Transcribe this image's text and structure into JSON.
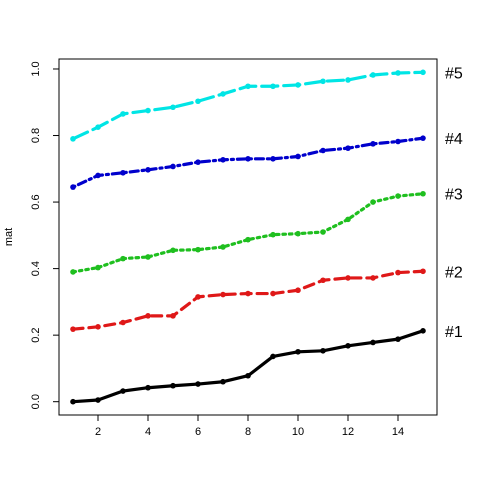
{
  "chart_data": {
    "type": "line",
    "xlabel": "",
    "ylabel": "mat",
    "xlim": [
      0.44,
      15.56
    ],
    "ylim": [
      -0.04,
      1.03
    ],
    "x_ticks": [
      2,
      4,
      6,
      8,
      10,
      12,
      14
    ],
    "y_ticks": [
      0.0,
      0.2,
      0.4,
      0.6,
      0.8,
      1.0
    ],
    "x_tick_labels": [
      "2",
      "4",
      "6",
      "8",
      "10",
      "12",
      "14"
    ],
    "y_tick_labels": [
      "0.0",
      "0.2",
      "0.4",
      "0.6",
      "0.8",
      "1.0"
    ],
    "x": [
      1,
      2,
      3,
      4,
      5,
      6,
      7,
      8,
      9,
      10,
      11,
      12,
      13,
      14,
      15
    ],
    "series": [
      {
        "name": "#1",
        "color": "#000000",
        "dash": "solid",
        "values": [
          0.0,
          0.005,
          0.032,
          0.042,
          0.048,
          0.053,
          0.06,
          0.078,
          0.136,
          0.15,
          0.153,
          0.168,
          0.178,
          0.188,
          0.213
        ]
      },
      {
        "name": "#2",
        "color": "#DF1818",
        "dash": "dashed",
        "values": [
          0.218,
          0.225,
          0.238,
          0.258,
          0.258,
          0.315,
          0.322,
          0.325,
          0.325,
          0.335,
          0.365,
          0.372,
          0.372,
          0.388,
          0.392
        ]
      },
      {
        "name": "#3",
        "color": "#1FBF1F",
        "dash": "dotted",
        "values": [
          0.39,
          0.403,
          0.43,
          0.435,
          0.455,
          0.457,
          0.465,
          0.487,
          0.502,
          0.505,
          0.51,
          0.548,
          0.6,
          0.618,
          0.625
        ]
      },
      {
        "name": "#4",
        "color": "#0000CC",
        "dash": "dotdash",
        "values": [
          0.645,
          0.68,
          0.688,
          0.697,
          0.707,
          0.72,
          0.727,
          0.73,
          0.73,
          0.737,
          0.755,
          0.762,
          0.775,
          0.782,
          0.792
        ]
      },
      {
        "name": "#5",
        "color": "#00E5E5",
        "dash": "longdash",
        "values": [
          0.79,
          0.825,
          0.865,
          0.875,
          0.885,
          0.903,
          0.925,
          0.948,
          0.948,
          0.952,
          0.963,
          0.967,
          0.982,
          0.988,
          0.99
        ]
      }
    ]
  }
}
